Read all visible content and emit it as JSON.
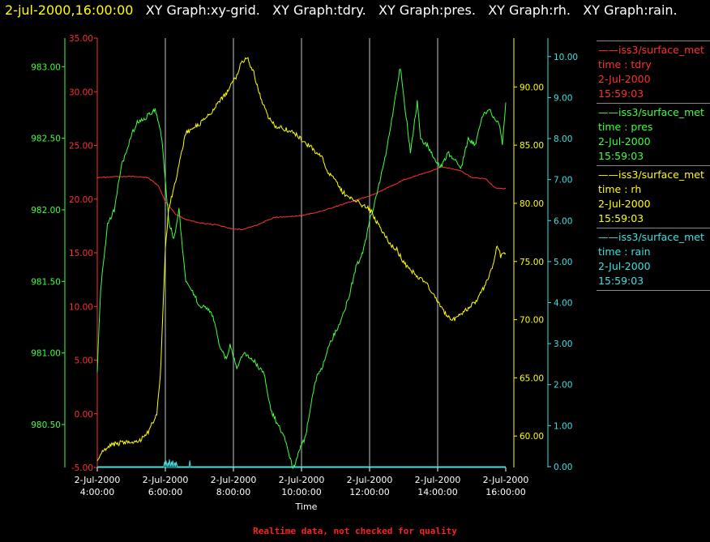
{
  "header": {
    "timestamp": "2-jul-2000,16:00:00",
    "graphs": [
      "XY Graph:xy-grid.",
      "XY Graph:tdry.",
      "XY Graph:pres.",
      "XY Graph:rh.",
      "XY Graph:rain."
    ]
  },
  "legend": [
    {
      "series": "iss3/surface_met",
      "field": "time : tdry",
      "date": "2-Jul-2000",
      "time": "15:59:03",
      "color": "#ff3030"
    },
    {
      "series": "iss3/surface_met",
      "field": "time : pres",
      "date": "2-Jul-2000",
      "time": "15:59:03",
      "color": "#40ff40"
    },
    {
      "series": "iss3/surface_met",
      "field": "time : rh",
      "date": "2-Jul-2000",
      "time": "15:59:03",
      "color": "#ffff00"
    },
    {
      "series": "iss3/surface_met",
      "field": "time : rain",
      "date": "2-Jul-2000",
      "time": "15:59:03",
      "color": "#40e0e0"
    }
  ],
  "footer": "Realtime data, not checked for quality",
  "chart_data": {
    "type": "line",
    "xlabel": "Time",
    "x_ticks": [
      {
        "date": "2-Jul-2000",
        "time": "4:00:00"
      },
      {
        "date": "2-Jul-2000",
        "time": "6:00:00"
      },
      {
        "date": "2-Jul-2000",
        "time": "8:00:00"
      },
      {
        "date": "2-Jul-2000",
        "time": "10:00:00"
      },
      {
        "date": "2-Jul-2000",
        "time": "12:00:00"
      },
      {
        "date": "2-Jul-2000",
        "time": "14:00:00"
      },
      {
        "date": "2-Jul-2000",
        "time": "16:00:00"
      }
    ],
    "xlim_hours": [
      4,
      16
    ],
    "grid_x": true,
    "axes": [
      {
        "name": "tdry",
        "color": "#ff3030",
        "range": [
          -5,
          35
        ],
        "ticks": [
          "35.00",
          "30.00",
          "25.00",
          "20.00",
          "15.00",
          "10.00",
          "5.00",
          "0.00",
          "-5.00"
        ]
      },
      {
        "name": "pres",
        "color": "#40ff40",
        "range": [
          980.2,
          983.2
        ],
        "ticks": [
          "983.00",
          "982.50",
          "982.00",
          "981.50",
          "981.00",
          "980.50"
        ]
      },
      {
        "name": "rh",
        "color": "#ffff00",
        "range": [
          57.3,
          94.2
        ],
        "ticks": [
          "90.00",
          "85.00",
          "80.00",
          "75.00",
          "70.00",
          "65.00",
          "60.00"
        ]
      },
      {
        "name": "rain",
        "color": "#40e0e0",
        "range": [
          -0.02,
          10.45
        ],
        "ticks": [
          "10.00",
          "9.00",
          "8.00",
          "7.00",
          "6.00",
          "5.00",
          "4.00",
          "3.00",
          "2.00",
          "1.00",
          "0.00"
        ]
      }
    ],
    "series": [
      {
        "name": "tdry",
        "axis": 0,
        "color": "#ff3030",
        "x": [
          4.0,
          4.5,
          5.0,
          5.5,
          5.8,
          6.0,
          6.3,
          6.6,
          7.0,
          7.5,
          8.0,
          8.3,
          8.7,
          9.2,
          9.8,
          10.2,
          10.6,
          11.0,
          11.5,
          12.0,
          12.5,
          13.0,
          13.5,
          13.8,
          14.1,
          14.3,
          14.7,
          15.0,
          15.4,
          15.7,
          16.0
        ],
        "y": [
          22.0,
          22.1,
          22.1,
          22.0,
          21.2,
          19.8,
          18.6,
          18.1,
          17.8,
          17.6,
          17.2,
          17.2,
          17.6,
          18.3,
          18.4,
          18.6,
          18.9,
          19.3,
          19.8,
          20.3,
          21.0,
          21.8,
          22.3,
          22.6,
          23.0,
          22.9,
          22.6,
          22.0,
          21.9,
          21.0,
          21.0
        ]
      },
      {
        "name": "pres",
        "axis": 1,
        "color": "#40ff40",
        "x": [
          4.0,
          4.1,
          4.3,
          4.5,
          4.7,
          5.0,
          5.2,
          5.4,
          5.7,
          5.9,
          6.1,
          6.25,
          6.4,
          6.6,
          6.8,
          7.0,
          7.2,
          7.4,
          7.6,
          7.8,
          7.9,
          8.1,
          8.3,
          8.6,
          8.9,
          9.1,
          9.3,
          9.55,
          9.75,
          9.9,
          10.0,
          10.1,
          10.2,
          10.4,
          10.6,
          10.8,
          11.0,
          11.2,
          11.4,
          11.6,
          11.8,
          12.0,
          12.2,
          12.4,
          12.6,
          12.8,
          12.9,
          13.0,
          13.2,
          13.4,
          13.5,
          13.7,
          13.9,
          14.1,
          14.3,
          14.5,
          14.7,
          14.9,
          15.1,
          15.3,
          15.5,
          15.8,
          15.9,
          16.0
        ],
        "y": [
          980.88,
          981.45,
          981.9,
          982.0,
          982.3,
          982.52,
          982.62,
          982.64,
          982.7,
          982.5,
          981.92,
          981.8,
          982.0,
          981.5,
          981.43,
          981.33,
          981.32,
          981.25,
          981.05,
          980.95,
          981.05,
          980.9,
          981.0,
          980.95,
          980.85,
          980.6,
          980.5,
          980.38,
          980.18,
          980.3,
          980.35,
          980.4,
          980.52,
          980.8,
          980.9,
          981.05,
          981.15,
          981.25,
          981.4,
          981.6,
          981.7,
          981.92,
          982.1,
          982.3,
          982.55,
          982.85,
          983.0,
          982.8,
          982.4,
          982.75,
          982.5,
          982.45,
          982.35,
          982.3,
          982.4,
          982.35,
          982.3,
          982.5,
          982.45,
          982.65,
          982.7,
          982.6,
          982.45,
          982.75
        ]
      },
      {
        "name": "rh",
        "axis": 2,
        "color": "#ffff00",
        "x": [
          4.0,
          4.1,
          4.4,
          4.8,
          5.2,
          5.5,
          5.75,
          5.85,
          5.92,
          6.0,
          6.1,
          6.3,
          6.6,
          7.0,
          7.4,
          7.8,
          8.1,
          8.25,
          8.4,
          8.6,
          8.8,
          9.0,
          9.2,
          9.4,
          9.6,
          9.8,
          10.0,
          10.2,
          10.4,
          10.6,
          10.8,
          11.0,
          11.2,
          11.4,
          11.6,
          11.8,
          12.0,
          12.2,
          12.4,
          12.6,
          12.8,
          12.9,
          13.0,
          13.1,
          13.3,
          13.5,
          13.7,
          13.9,
          14.1,
          14.3,
          14.5,
          14.7,
          14.9,
          15.1,
          15.3,
          15.5,
          15.65,
          15.75,
          15.85,
          16.0
        ],
        "y": [
          58.0,
          58.5,
          59.2,
          59.5,
          59.5,
          60.3,
          62.0,
          65.0,
          70.0,
          76.0,
          79.5,
          82.0,
          86.0,
          86.8,
          88.0,
          89.5,
          91.0,
          92.2,
          92.5,
          91.2,
          89.0,
          87.5,
          86.7,
          86.5,
          86.3,
          86.0,
          85.5,
          85.0,
          84.5,
          84.0,
          82.5,
          82.0,
          81.0,
          80.5,
          80.2,
          79.8,
          79.5,
          78.5,
          77.5,
          76.5,
          76.0,
          75.5,
          75.0,
          74.5,
          74.0,
          73.5,
          73.0,
          72.0,
          71.0,
          70.3,
          70.0,
          70.5,
          71.0,
          71.5,
          72.5,
          73.5,
          75.0,
          76.5,
          75.5,
          75.7
        ]
      },
      {
        "name": "rain",
        "axis": 3,
        "color": "#40e0e0",
        "x": [
          4.0,
          5.95,
          5.98,
          6.0,
          6.02,
          6.05,
          6.08,
          6.1,
          6.12,
          6.15,
          6.18,
          6.2,
          6.22,
          6.25,
          6.28,
          6.3,
          6.32,
          6.35,
          6.5,
          6.7,
          6.72,
          6.74,
          6.76,
          16.0
        ],
        "y": [
          0.0,
          0.0,
          0.12,
          0.0,
          0.15,
          0.0,
          0.1,
          0.0,
          0.18,
          0.0,
          0.12,
          0.0,
          0.15,
          0.0,
          0.1,
          0.0,
          0.12,
          0.0,
          0.0,
          0.0,
          0.15,
          0.0,
          0.0,
          0.0
        ]
      }
    ]
  }
}
